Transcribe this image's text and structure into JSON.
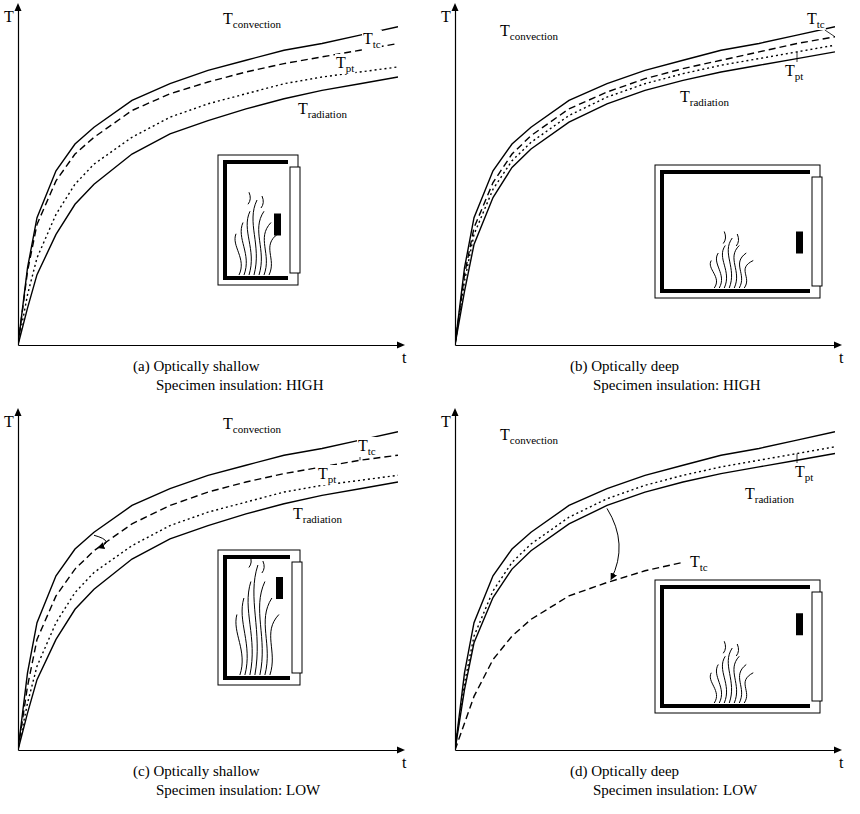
{
  "chart_data": [
    {
      "type": "line",
      "title": "(a) Optically shallow",
      "subtitle": "Specimen insulation: HIGH",
      "x_label": "t",
      "y_label": "T",
      "xlim": [
        0,
        10
      ],
      "ylim": [
        0,
        10
      ],
      "tick_labels": false,
      "x": [
        0,
        0.25,
        0.5,
        1,
        1.5,
        2,
        3,
        4,
        5,
        6,
        7,
        8,
        9,
        10
      ],
      "series": [
        {
          "name": "Tconvection",
          "color": "#000000",
          "line_style": "solid",
          "values": [
            0,
            2.3,
            3.8,
            5.2,
            6.0,
            6.5,
            7.3,
            7.8,
            8.2,
            8.5,
            8.8,
            9.0,
            9.25,
            9.5
          ]
        },
        {
          "name": "Ttc",
          "color": "#000000",
          "line_style": "dashed",
          "values": [
            0,
            2.2,
            3.6,
            4.9,
            5.7,
            6.2,
            7.0,
            7.5,
            7.85,
            8.15,
            8.4,
            8.6,
            8.8,
            9.0
          ]
        },
        {
          "name": "Tpt",
          "color": "#000000",
          "line_style": "dotted",
          "values": [
            0,
            1.5,
            2.6,
            3.9,
            4.8,
            5.4,
            6.2,
            6.8,
            7.2,
            7.5,
            7.8,
            8.0,
            8.15,
            8.3
          ]
        },
        {
          "name": "Tradiation",
          "color": "#000000",
          "line_style": "solid",
          "values": [
            0,
            1.1,
            2.1,
            3.3,
            4.2,
            4.8,
            5.7,
            6.3,
            6.7,
            7.05,
            7.35,
            7.6,
            7.8,
            8.0
          ]
        }
      ]
    },
    {
      "type": "line",
      "title": "(b) Optically deep",
      "subtitle": "Specimen insulation: HIGH",
      "x_label": "t",
      "y_label": "T",
      "xlim": [
        0,
        10
      ],
      "ylim": [
        0,
        10
      ],
      "tick_labels": false,
      "x": [
        0,
        0.25,
        0.5,
        1,
        1.5,
        2,
        3,
        4,
        5,
        6,
        7,
        8,
        9,
        10
      ],
      "series": [
        {
          "name": "Tconvection",
          "color": "#000000",
          "line_style": "solid",
          "values": [
            0,
            2.3,
            3.8,
            5.2,
            6.0,
            6.5,
            7.3,
            7.8,
            8.2,
            8.5,
            8.8,
            9.0,
            9.25,
            9.5
          ]
        },
        {
          "name": "Ttc",
          "color": "#000000",
          "line_style": "dashed",
          "values": [
            0,
            2.1,
            3.5,
            4.85,
            5.7,
            6.25,
            7.05,
            7.55,
            7.95,
            8.25,
            8.5,
            8.75,
            9.0,
            9.2
          ]
        },
        {
          "name": "Tpt",
          "color": "#000000",
          "line_style": "dotted",
          "values": [
            0,
            1.9,
            3.3,
            4.65,
            5.5,
            6.05,
            6.85,
            7.4,
            7.8,
            8.1,
            8.35,
            8.55,
            8.75,
            8.95
          ]
        },
        {
          "name": "Tradiation",
          "color": "#000000",
          "line_style": "solid",
          "values": [
            0,
            1.6,
            3.0,
            4.4,
            5.3,
            5.85,
            6.65,
            7.2,
            7.6,
            7.9,
            8.15,
            8.35,
            8.55,
            8.75
          ]
        }
      ]
    },
    {
      "type": "line",
      "title": "(c) Optically shallow",
      "subtitle": "Specimen insulation: LOW",
      "x_label": "t",
      "y_label": "T",
      "xlim": [
        0,
        10
      ],
      "ylim": [
        0,
        10
      ],
      "tick_labels": false,
      "x": [
        0,
        0.25,
        0.5,
        1,
        1.5,
        2,
        3,
        4,
        5,
        6,
        7,
        8,
        9,
        10
      ],
      "series": [
        {
          "name": "Tconvection",
          "color": "#000000",
          "line_style": "solid",
          "values": [
            0,
            2.3,
            3.8,
            5.2,
            6.0,
            6.5,
            7.3,
            7.8,
            8.2,
            8.5,
            8.8,
            9.0,
            9.25,
            9.5
          ]
        },
        {
          "name": "Ttc",
          "color": "#000000",
          "line_style": "dashed",
          "values": [
            0,
            1.9,
            3.3,
            4.6,
            5.4,
            5.95,
            6.75,
            7.3,
            7.7,
            8.0,
            8.25,
            8.45,
            8.65,
            8.8
          ]
        },
        {
          "name": "Tpt",
          "color": "#000000",
          "line_style": "dotted",
          "values": [
            0,
            1.4,
            2.5,
            3.8,
            4.7,
            5.3,
            6.1,
            6.7,
            7.1,
            7.4,
            7.7,
            7.9,
            8.05,
            8.2
          ]
        },
        {
          "name": "Tradiation",
          "color": "#000000",
          "line_style": "solid",
          "values": [
            0,
            1.1,
            2.1,
            3.3,
            4.2,
            4.8,
            5.7,
            6.3,
            6.7,
            7.05,
            7.35,
            7.6,
            7.8,
            8.0
          ]
        }
      ]
    },
    {
      "type": "line",
      "title": "(d) Optically deep",
      "subtitle": "Specimen insulation: LOW",
      "x_label": "t",
      "y_label": "T",
      "xlim": [
        0,
        10
      ],
      "ylim": [
        0,
        10
      ],
      "tick_labels": false,
      "x": [
        0,
        0.25,
        0.5,
        1,
        1.5,
        2,
        3,
        4,
        5,
        6,
        7,
        8,
        9,
        10
      ],
      "series": [
        {
          "name": "Tconvection",
          "color": "#000000",
          "line_style": "solid",
          "values": [
            0,
            2.3,
            3.8,
            5.2,
            6.0,
            6.5,
            7.3,
            7.8,
            8.2,
            8.5,
            8.8,
            9.0,
            9.25,
            9.5
          ]
        },
        {
          "name": "Ttc",
          "color": "#000000",
          "line_style": "dashed",
          "values": [
            0,
            0.8,
            1.6,
            2.7,
            3.4,
            3.9,
            4.6,
            5.0,
            5.35,
            5.6,
            null,
            null,
            null,
            null
          ]
        },
        {
          "name": "Tpt",
          "color": "#000000",
          "line_style": "dotted",
          "values": [
            0,
            2.0,
            3.4,
            4.75,
            5.6,
            6.15,
            6.95,
            7.5,
            7.9,
            8.2,
            8.45,
            8.65,
            8.85,
            9.05
          ]
        },
        {
          "name": "Tradiation",
          "color": "#000000",
          "line_style": "solid",
          "values": [
            0,
            1.8,
            3.2,
            4.55,
            5.4,
            5.95,
            6.75,
            7.3,
            7.7,
            8.0,
            8.25,
            8.45,
            8.65,
            8.85
          ]
        }
      ]
    }
  ]
}
